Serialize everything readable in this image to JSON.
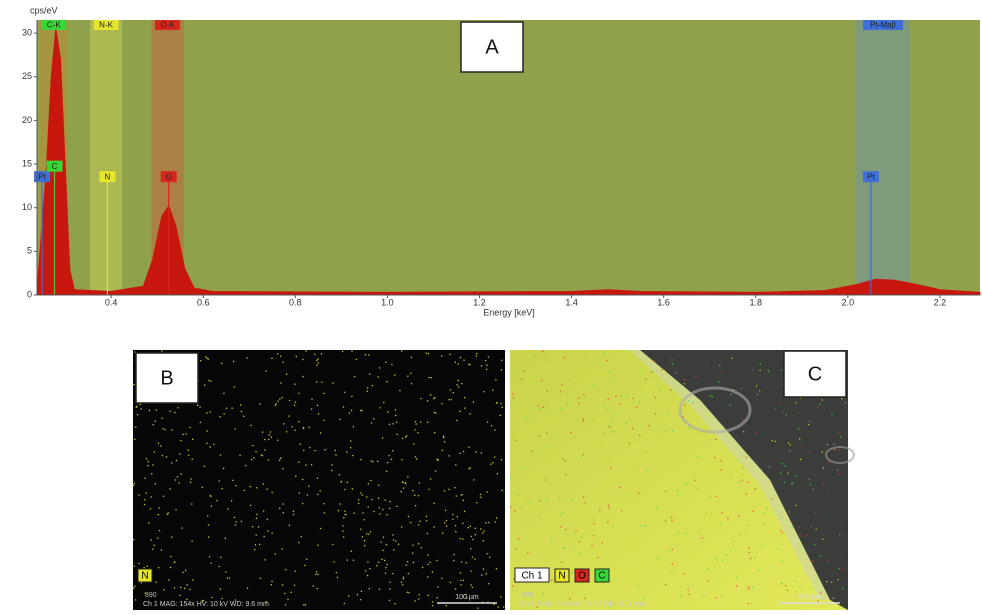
{
  "chart_data": {
    "type": "area",
    "panel_label": "A",
    "y_label": "cps/eV",
    "x_label": "Energy [keV]",
    "xlim": [
      0.239,
      2.287
    ],
    "ylim": [
      0,
      31.5
    ],
    "xticks": [
      0.4,
      0.6,
      0.8,
      {
        "value": 1,
        "label": "1.0"
      },
      1.2,
      1.4,
      1.6,
      1.8,
      {
        "value": 2,
        "label": "2.0"
      },
      2.2
    ],
    "yticks": [
      0,
      5,
      10,
      15,
      20,
      25,
      30
    ],
    "background": "#8fa24b",
    "color": "#c8170f",
    "x": [
      0.239,
      0.25,
      0.26,
      0.27,
      0.28,
      0.29,
      0.3,
      0.31,
      0.32,
      0.4,
      0.47,
      0.49,
      0.51,
      0.525,
      0.54,
      0.56,
      0.58,
      0.62,
      1.0,
      1.4,
      1.48,
      1.55,
      1.8,
      1.95,
      2.02,
      2.06,
      2.1,
      2.15,
      2.2,
      2.287
    ],
    "values": [
      0.5,
      8,
      15,
      25,
      30.5,
      27,
      15,
      3,
      0.6,
      0.4,
      1,
      4,
      9,
      10.2,
      8,
      3,
      0.8,
      0.4,
      0.3,
      0.4,
      0.6,
      0.4,
      0.3,
      0.5,
      1.2,
      1.8,
      1.7,
      1.2,
      0.6,
      0.3
    ],
    "bands": [
      {
        "label": "C-K",
        "start": 0.245,
        "end": 0.306,
        "color": "#35d835",
        "fill": "#a8933c"
      },
      {
        "label": "N-K",
        "start": 0.354,
        "end": 0.424,
        "color": "#e6e62a",
        "fill": "#b2bd55"
      },
      {
        "label": "O-K",
        "start": 0.487,
        "end": 0.558,
        "color": "#d8261c",
        "fill": "#b07a45"
      },
      {
        "label": "Pt-Maβ",
        "start": 2.018,
        "end": 2.135,
        "color": "#3f6fd8",
        "fill": "#7d9a85"
      }
    ],
    "markers": [
      {
        "label": "Pt",
        "x": 0.25,
        "height": 13.5,
        "color": "#3f6fd8"
      },
      {
        "label": "C",
        "x": 0.277,
        "height": 14.7,
        "color": "#35d835"
      },
      {
        "label": "N",
        "x": 0.392,
        "height": 13.5,
        "color": "#e6e62a"
      },
      {
        "label": "O",
        "x": 0.525,
        "height": 13.5,
        "color": "#d8261c"
      },
      {
        "label": "Pt",
        "x": 2.05,
        "height": 13.5,
        "color": "#3f6fd8"
      }
    ]
  },
  "images": [
    {
      "panel_label": "B",
      "legend": [
        {
          "label": "N",
          "color": "#e6e62a"
        }
      ],
      "counter": "890",
      "info": "Ch 1   MAG: 154x   HV: 10 kV   WD: 9.6 mm",
      "scale_bar": "100 µm"
    },
    {
      "panel_label": "C",
      "channel": "Ch 1",
      "legend": [
        {
          "label": "N",
          "color": "#e6e62a"
        },
        {
          "label": "O",
          "color": "#d8261c"
        },
        {
          "label": "C",
          "color": "#35d835"
        }
      ],
      "counter": "886",
      "info": "Ch 1   MAG: 46x   HV: 10 kV   WD: 10.1 mm",
      "scale_bar": "500 µm"
    }
  ]
}
